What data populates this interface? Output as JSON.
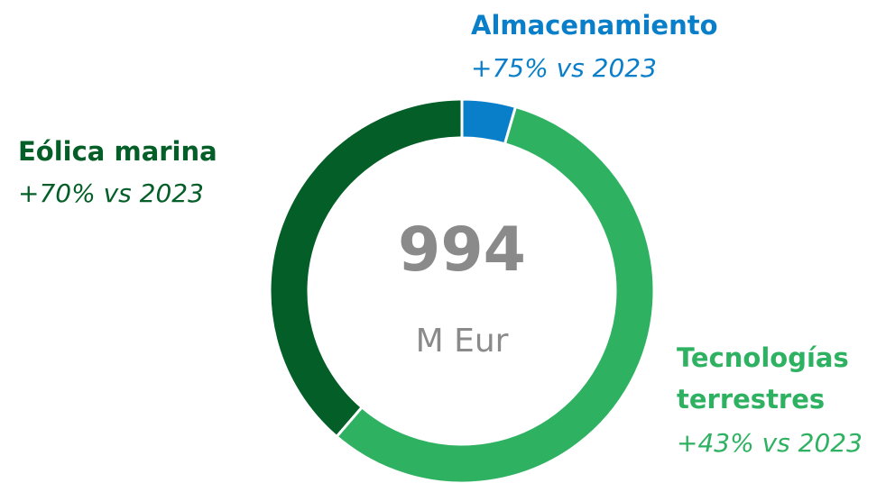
{
  "chart_data": {
    "type": "pie",
    "categories": [
      "Almacenamiento",
      "Tecnologías terrestres",
      "Eólica marina"
    ],
    "values": [
      4.5,
      56.8,
      38.7
    ],
    "colors": [
      "#0a7fc9",
      "#2eb262",
      "#045e27"
    ],
    "change_labels": [
      "+75% vs 2023",
      "+43% vs 2023",
      "+70% vs 2023"
    ],
    "center_value": 994,
    "center_label": "M Eur"
  }
}
